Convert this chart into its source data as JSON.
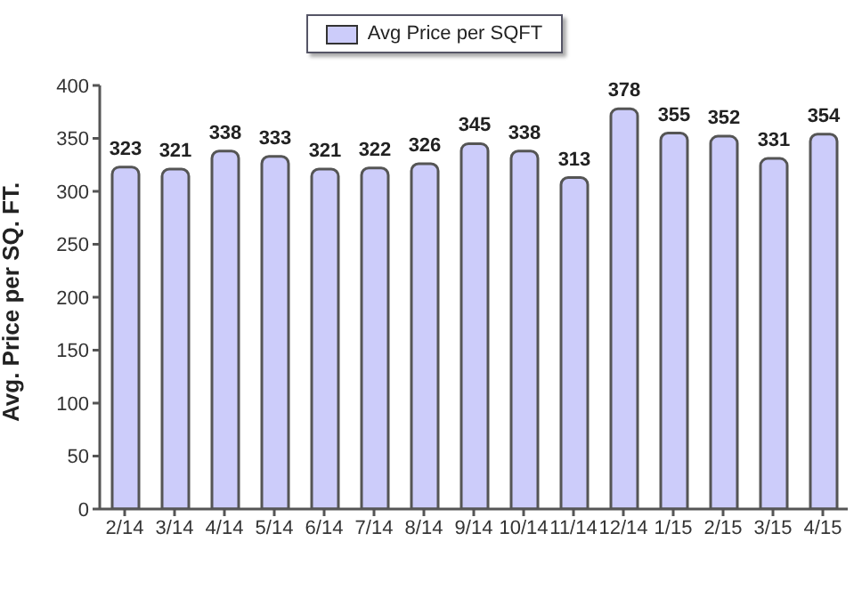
{
  "chart_data": {
    "type": "bar",
    "ylabel": "Avg. Price per SQ. FT.",
    "categories": [
      "2/14",
      "3/14",
      "4/14",
      "5/14",
      "6/14",
      "7/14",
      "8/14",
      "9/14",
      "10/14",
      "11/14",
      "12/14",
      "1/15",
      "2/15",
      "3/15",
      "4/15"
    ],
    "series": [
      {
        "name": "Avg Price per SQFT",
        "color": "#ccccfa",
        "values": [
          323,
          321,
          338,
          333,
          321,
          322,
          326,
          345,
          338,
          313,
          378,
          355,
          352,
          331,
          354
        ]
      }
    ],
    "ylim": [
      0,
      400
    ],
    "yticks": [
      0,
      50,
      100,
      150,
      200,
      250,
      300,
      350,
      400
    ],
    "grid": false,
    "legend": "top",
    "data_labels": true
  }
}
